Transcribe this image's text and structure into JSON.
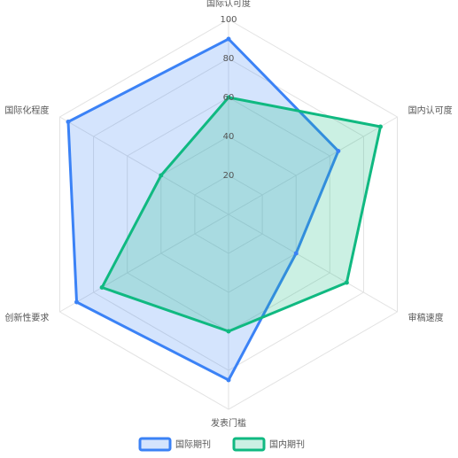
{
  "chart_data": {
    "type": "radar",
    "categories": [
      "国际认可度",
      "国内认可度",
      "审稿速度",
      "发表门槛",
      "创新性要求",
      "国际化程度"
    ],
    "rlim": [
      0,
      100
    ],
    "rticks": [
      20,
      40,
      60,
      80,
      100
    ],
    "grid": true,
    "legend": "bottom",
    "series": [
      {
        "name": "国际期刊",
        "color": "#3b82f6",
        "values": [
          90,
          65,
          40,
          85,
          90,
          95
        ]
      },
      {
        "name": "国内期刊",
        "color": "#10b981",
        "values": [
          60,
          90,
          70,
          60,
          75,
          40
        ]
      }
    ]
  }
}
